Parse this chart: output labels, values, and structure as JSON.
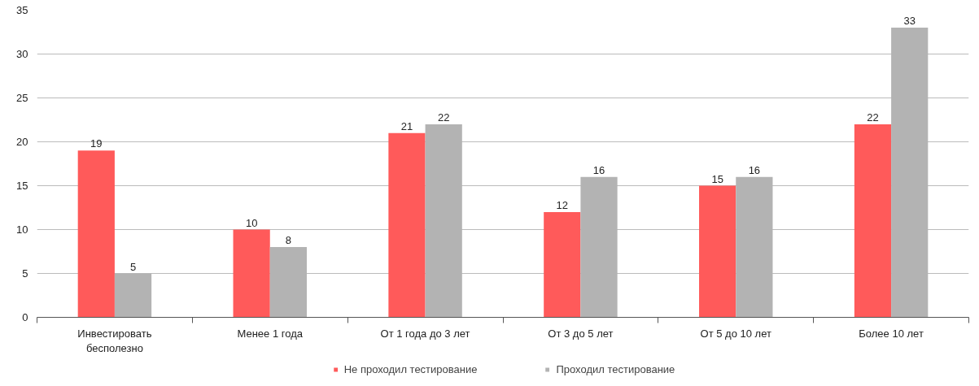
{
  "chart_data": {
    "type": "bar",
    "categories": [
      "Инвестировать бесполезно",
      "Менее 1 года",
      "От 1 года до 3 лет",
      "От 3 до 5 лет",
      "От 5 до 10 лет",
      "Более 10 лет"
    ],
    "series": [
      {
        "name": "Не проходил тестирование",
        "color": "#ff5a5a",
        "values": [
          19,
          10,
          21,
          12,
          15,
          22
        ]
      },
      {
        "name": "Проходил тестирование",
        "color": "#b3b3b3",
        "values": [
          5,
          8,
          22,
          16,
          16,
          33
        ]
      }
    ],
    "ylim": [
      0,
      35
    ],
    "yticks": [
      0,
      5,
      10,
      15,
      20,
      25,
      30,
      35
    ],
    "grid": "y",
    "legend": "bottom",
    "data_labels": true
  }
}
